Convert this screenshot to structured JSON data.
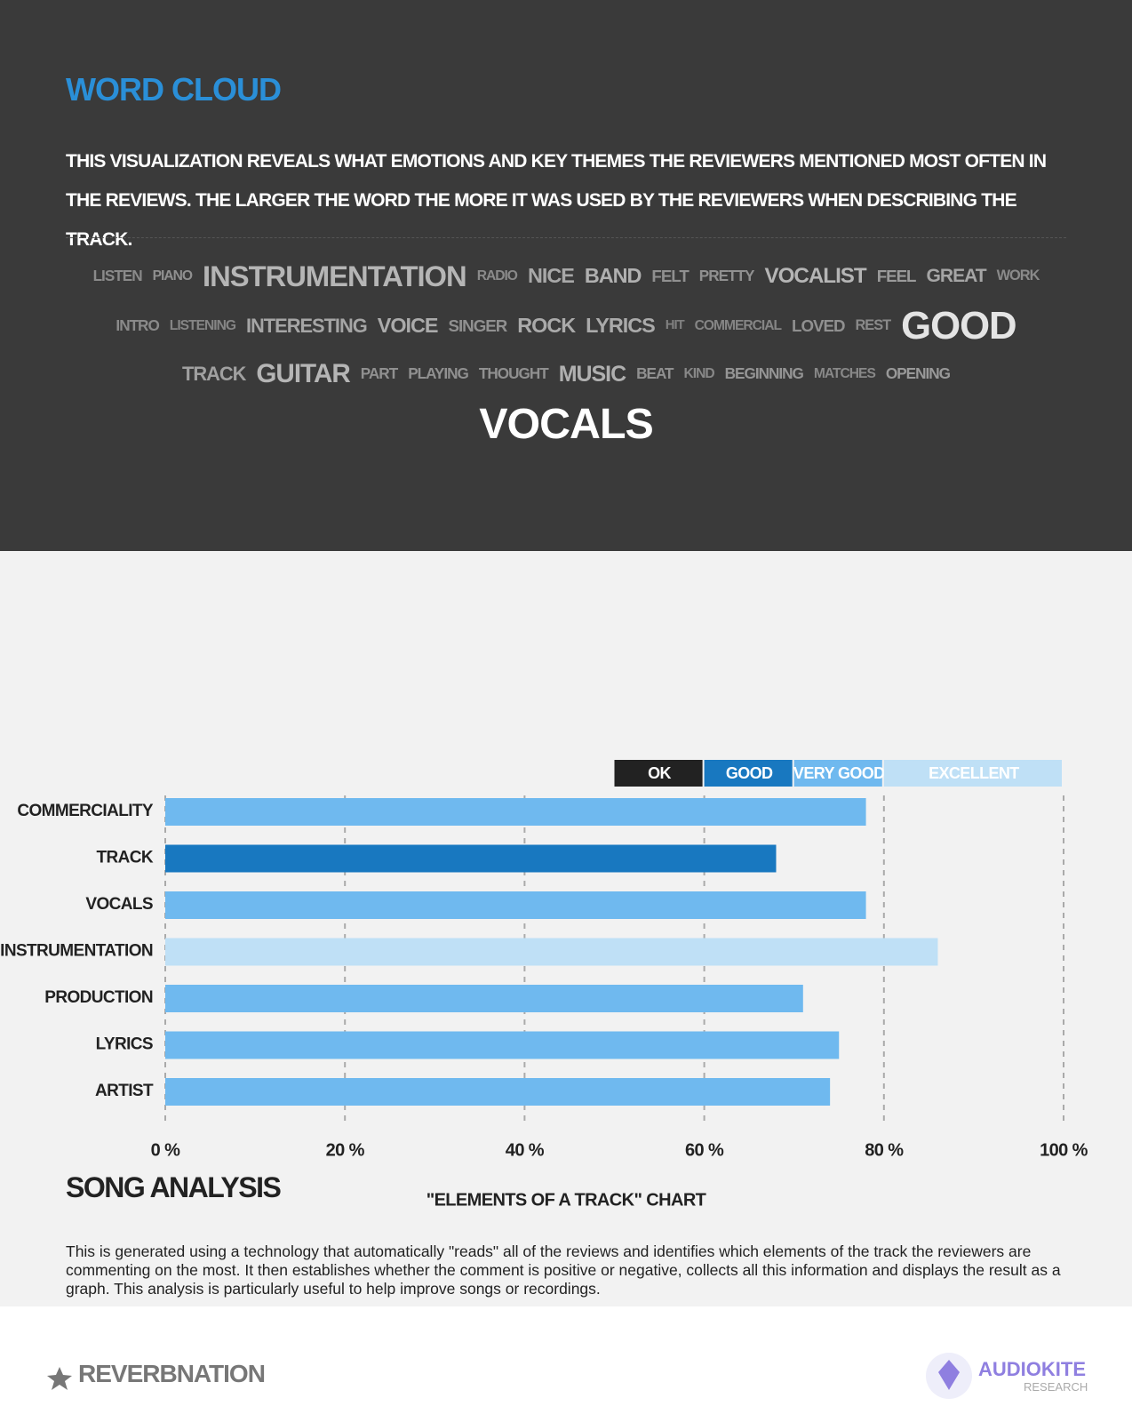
{
  "word_cloud": {
    "title": "WORD CLOUD",
    "description": "THIS VISUALIZATION REVEALS WHAT EMOTIONS AND KEY THEMES THE REVIEWERS MENTIONED MOST OFTEN IN THE REVIEWS. THE LARGER THE WORD THE MORE IT WAS USED BY THE REVIEWERS WHEN DESCRIBING THE TRACK.",
    "words": [
      "LISTEN",
      "PIANO",
      "INSTRUMENTATION",
      "RADIO",
      "NICE",
      "BAND",
      "FELT",
      "PRETTY",
      "VOCALIST",
      "FEEL",
      "GREAT",
      "WORK",
      "INTRO",
      "LISTENING",
      "INTERESTING",
      "VOICE",
      "SINGER",
      "ROCK",
      "LYRICS",
      "HIT",
      "COMMERCIAL",
      "LOVED",
      "REST",
      "GOOD",
      "TRACK",
      "GUITAR",
      "PART",
      "PLAYING",
      "THOUGHT",
      "MUSIC",
      "BEAT",
      "KIND",
      "BEGINNING",
      "MATCHES",
      "OPENING",
      "VOCALS"
    ]
  },
  "song_analysis": {
    "title": "SONG ANALYSIS",
    "description": "This is generated using a technology that automatically \"reads\" all of the reviews and identifies which elements of the track the reviewers are commenting on the most. It then establishes whether the comment is positive or negative, collects all this information and displays the result as a graph. This analysis is particularly useful to help improve songs or recordings.",
    "chart_data": {
      "type": "bar",
      "orientation": "horizontal",
      "title": "\"ELEMENTS OF A TRACK\" CHART",
      "categories": [
        "COMMERCIALITY",
        "TRACK",
        "VOCALS",
        "INSTRUMENTATION",
        "PRODUCTION",
        "LYRICS",
        "ARTIST"
      ],
      "values": [
        78,
        68,
        78,
        86,
        71,
        75,
        74
      ],
      "colors": [
        "#6fb9ef",
        "#1878c0",
        "#6fb9ef",
        "#bfe0f6",
        "#6fb9ef",
        "#6fb9ef",
        "#6fb9ef"
      ],
      "xlim": [
        0,
        100
      ],
      "xticks": [
        {
          "value": 0,
          "label": "0 %"
        },
        {
          "value": 20,
          "label": "20 %"
        },
        {
          "value": 40,
          "label": "40 %"
        },
        {
          "value": 60,
          "label": "60 %"
        },
        {
          "value": 80,
          "label": "80 %"
        },
        {
          "value": 100,
          "label": "100 %"
        }
      ],
      "grid": true,
      "legend": [
        {
          "name": "OK",
          "color": "#222222",
          "range": [
            50,
            60
          ]
        },
        {
          "name": "GOOD",
          "color": "#1878c0",
          "range": [
            60,
            70
          ]
        },
        {
          "name": "VERY GOOD",
          "color": "#6fb9ef",
          "range": [
            70,
            80
          ]
        },
        {
          "name": "EXCELLENT",
          "color": "#bfe0f6",
          "range": [
            80,
            100
          ]
        }
      ]
    }
  },
  "footer": {
    "left_logo": "REVERBNATION",
    "right_logo": "AUDIOKITE",
    "right_sub": "RESEARCH"
  }
}
